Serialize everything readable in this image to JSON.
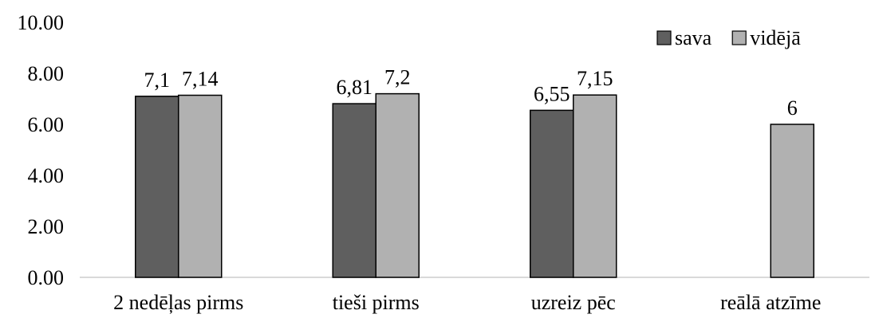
{
  "chart_data": {
    "type": "bar",
    "categories": [
      "2 nedēļas pirms",
      "tieši pirms",
      "uzreiz pēc",
      "reālā atzīme"
    ],
    "series": [
      {
        "name": "sava",
        "color": "#5f5f5f",
        "values": [
          7.1,
          6.81,
          6.55,
          null
        ],
        "labels": [
          "7,1",
          "6,81",
          "6,55",
          ""
        ]
      },
      {
        "name": "vidējā",
        "color": "#b1b1b1",
        "values": [
          7.14,
          7.2,
          7.15,
          6
        ],
        "labels": [
          "7,14",
          "7,2",
          "7,15",
          "6"
        ]
      }
    ],
    "yticks": [
      "0.00",
      "2.00",
      "4.00",
      "6.00",
      "8.00",
      "10.00"
    ],
    "ylim": [
      0,
      10
    ],
    "grid": false,
    "legend": "top-right"
  }
}
